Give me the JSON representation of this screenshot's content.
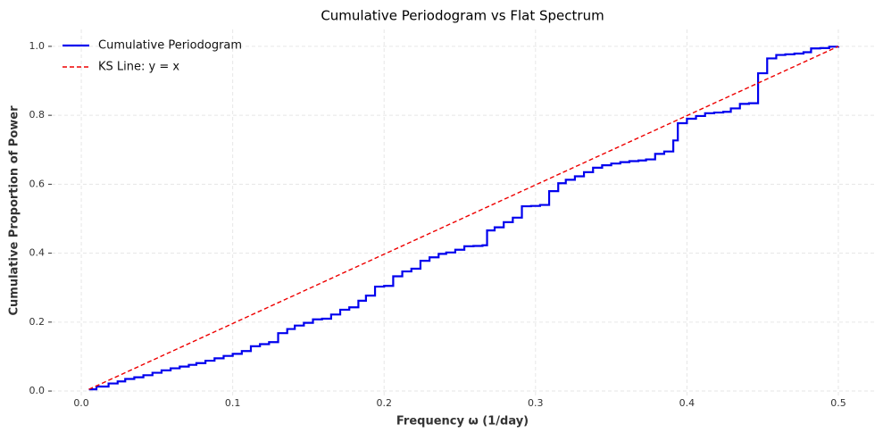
{
  "chart_data": {
    "type": "line",
    "title": "Cumulative Periodogram vs Flat Spectrum",
    "x_label": "Frequency ω (1/day)",
    "y_label": "Cumulative Proportion of Power",
    "xlim": [
      -0.0195,
      0.5242
    ],
    "ylim": [
      -0.018,
      1.049
    ],
    "xticks": [
      {
        "value": 0,
        "label": "0.0"
      },
      0.1,
      0.2,
      0.3,
      0.4,
      0.5
    ],
    "yticks": [
      {
        "value": 0,
        "label": "0.0"
      },
      0.2,
      0.4,
      0.6,
      0.8,
      {
        "value": 1,
        "label": "1.0"
      }
    ],
    "grid": true,
    "legend": "upper left",
    "series": [
      {
        "name": "Cumulative Periodogram",
        "color": "#0000ee",
        "drawstyle": "steps-post",
        "x": [
          0.005,
          0.01,
          0.018,
          0.024,
          0.029,
          0.035,
          0.041,
          0.047,
          0.053,
          0.059,
          0.065,
          0.071,
          0.076,
          0.082,
          0.088,
          0.094,
          0.1,
          0.106,
          0.112,
          0.118,
          0.124,
          0.13,
          0.136,
          0.141,
          0.147,
          0.153,
          0.159,
          0.165,
          0.171,
          0.177,
          0.183,
          0.188,
          0.194,
          0.2,
          0.206,
          0.212,
          0.218,
          0.224,
          0.23,
          0.236,
          0.241,
          0.247,
          0.253,
          0.259,
          0.265,
          0.268,
          0.273,
          0.279,
          0.285,
          0.291,
          0.297,
          0.303,
          0.309,
          0.315,
          0.32,
          0.326,
          0.332,
          0.338,
          0.344,
          0.35,
          0.356,
          0.362,
          0.368,
          0.373,
          0.379,
          0.385,
          0.391,
          0.394,
          0.4,
          0.406,
          0.412,
          0.418,
          0.424,
          0.429,
          0.435,
          0.441,
          0.447,
          0.453,
          0.459,
          0.465,
          0.471,
          0.477,
          0.482,
          0.488,
          0.494,
          0.5
        ],
        "values": [
          0.005,
          0.013,
          0.022,
          0.028,
          0.035,
          0.04,
          0.046,
          0.053,
          0.06,
          0.066,
          0.071,
          0.076,
          0.081,
          0.088,
          0.095,
          0.102,
          0.108,
          0.116,
          0.13,
          0.136,
          0.142,
          0.168,
          0.18,
          0.19,
          0.198,
          0.208,
          0.21,
          0.222,
          0.236,
          0.243,
          0.262,
          0.277,
          0.303,
          0.305,
          0.333,
          0.347,
          0.355,
          0.378,
          0.388,
          0.398,
          0.402,
          0.41,
          0.42,
          0.421,
          0.423,
          0.466,
          0.475,
          0.49,
          0.503,
          0.536,
          0.537,
          0.54,
          0.58,
          0.603,
          0.613,
          0.623,
          0.635,
          0.648,
          0.655,
          0.66,
          0.664,
          0.667,
          0.669,
          0.672,
          0.688,
          0.695,
          0.727,
          0.777,
          0.79,
          0.798,
          0.806,
          0.808,
          0.81,
          0.82,
          0.833,
          0.835,
          0.922,
          0.965,
          0.975,
          0.977,
          0.979,
          0.983,
          0.994,
          0.995,
          0.999,
          1.0
        ]
      },
      {
        "name": "KS Line: y = x",
        "color": "#ee0000",
        "linestyle": "dashed",
        "x": [
          0.005,
          0.5
        ],
        "values": [
          0.005,
          1.0
        ]
      }
    ]
  }
}
